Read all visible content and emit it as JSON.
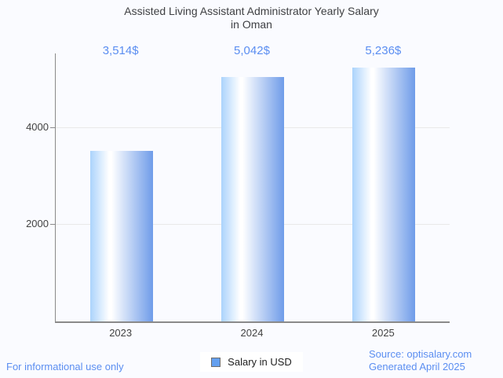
{
  "title": {
    "line1": "Assisted Living Assistant Administrator Yearly Salary",
    "line2": "in Oman"
  },
  "chart_data": {
    "type": "bar",
    "title": "Assisted Living Assistant Administrator Yearly Salary in Oman",
    "categories": [
      "2023",
      "2024",
      "2025"
    ],
    "values": [
      3514,
      5042,
      5236
    ],
    "value_labels": [
      "3,514$",
      "5,042$",
      "5,236$"
    ],
    "xlabel": "",
    "ylabel": "",
    "ylim": [
      0,
      5520
    ],
    "yticks": [
      2000,
      4000
    ],
    "grid": true,
    "legend": {
      "label": "Salary in USD",
      "position": "bottom"
    },
    "colors": {
      "bar_gradient_left": "#abd3fc",
      "bar_gradient_mid": "#ffffff",
      "bar_gradient_right": "#6f9ce9",
      "value_label_text": "#5b8ef1",
      "axis_text": "#424242",
      "gridline": "#e9e9e9",
      "axis_line": "#8a8a8a",
      "legend_swatch": "#64a0f0",
      "background": "#fafbff"
    }
  },
  "footer": {
    "disclaimer": "For informational use only",
    "source": "Source: optisalary.com",
    "generated": "Generated April 2025"
  }
}
